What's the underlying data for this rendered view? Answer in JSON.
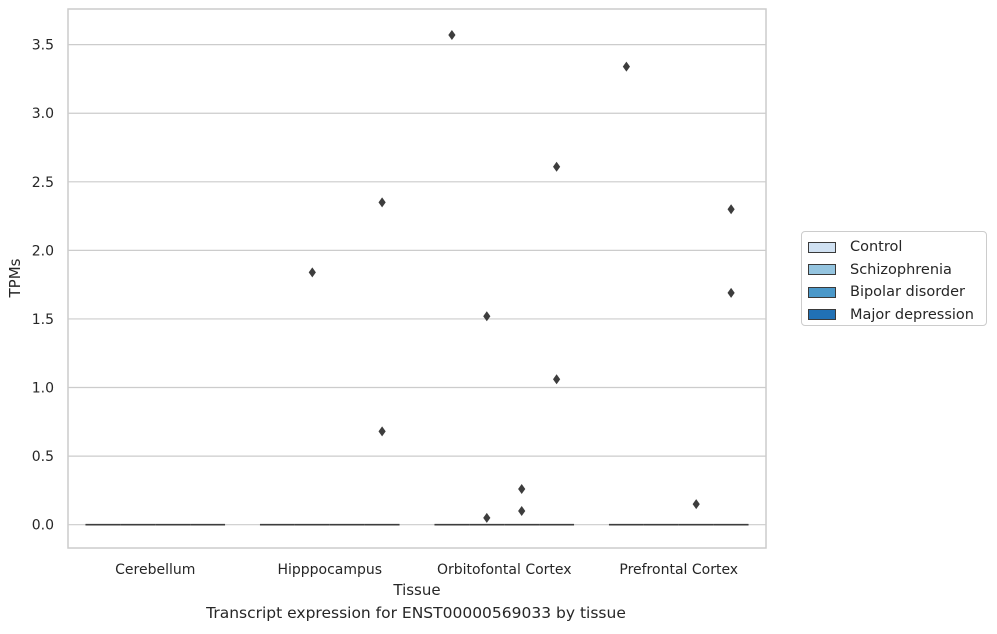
{
  "chart_data": {
    "type": "box",
    "xlabel": "Tissue",
    "ylabel": "TPMs",
    "caption": "Transcript expression for ENST00000569033 by tissue",
    "categories": [
      "Cerebellum",
      "Hipppocampus",
      "Orbitofontal Cortex",
      "Prefrontal Cortex"
    ],
    "ylim": [
      -0.17,
      3.76
    ],
    "yticks": [
      "0.0",
      "0.5",
      "1.0",
      "1.5",
      "2.0",
      "2.5",
      "3.0",
      "3.5"
    ],
    "grid": "horizontal",
    "legend_position": "right",
    "series": [
      {
        "name": "Control",
        "color": "#d0e1f2",
        "medians": [
          0,
          0,
          0,
          0
        ],
        "outliers": [
          [],
          [],
          [
            3.57
          ],
          [
            3.34
          ]
        ]
      },
      {
        "name": "Schizophrenia",
        "color": "#94c4df",
        "medians": [
          0,
          0,
          0,
          0
        ],
        "outliers": [
          [],
          [
            1.84
          ],
          [
            1.52,
            0.05
          ],
          []
        ]
      },
      {
        "name": "Bipolar disorder",
        "color": "#4a98c9",
        "medians": [
          0,
          0,
          0,
          0
        ],
        "outliers": [
          [],
          [],
          [
            0.26,
            0.1
          ],
          [
            0.15
          ]
        ]
      },
      {
        "name": "Major depression",
        "color": "#2171b5",
        "medians": [
          0,
          0,
          0,
          0
        ],
        "outliers": [
          [],
          [
            2.35,
            0.68
          ],
          [
            2.61,
            1.06
          ],
          [
            2.3,
            1.69
          ]
        ]
      }
    ]
  }
}
